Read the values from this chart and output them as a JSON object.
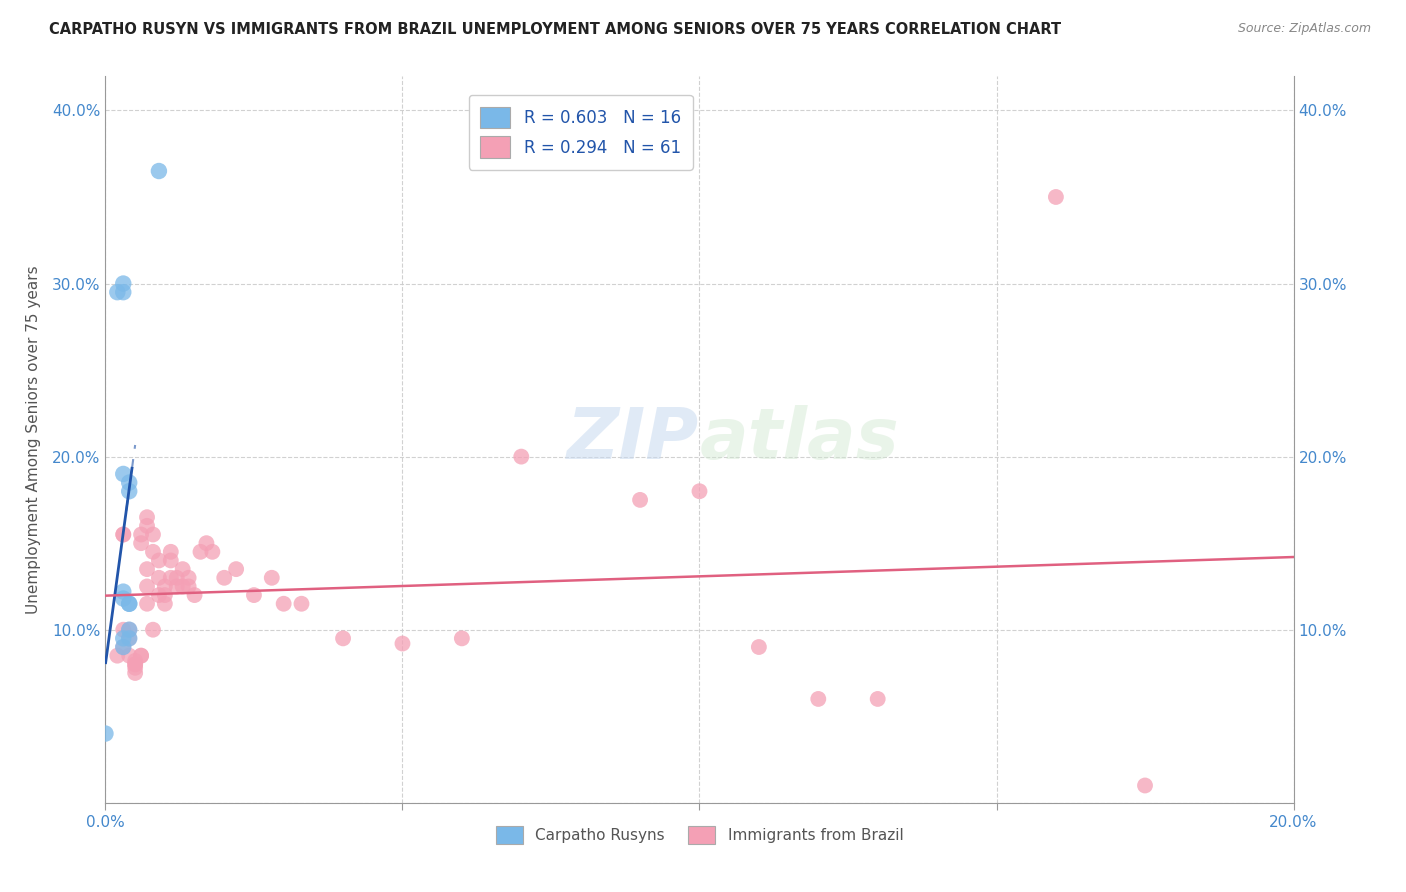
{
  "title": "CARPATHO RUSYN VS IMMIGRANTS FROM BRAZIL UNEMPLOYMENT AMONG SENIORS OVER 75 YEARS CORRELATION CHART",
  "source": "Source: ZipAtlas.com",
  "ylabel": "Unemployment Among Seniors over 75 years",
  "xlim": [
    0,
    0.2
  ],
  "ylim": [
    0,
    0.42
  ],
  "blue_color": "#7ab8e8",
  "pink_color": "#f4a0b5",
  "blue_line_color": "#2255aa",
  "pink_line_color": "#e06080",
  "tick_color": "#4488cc",
  "watermark_color": "#ddeeff",
  "blue_scatter_x": [
    0.002,
    0.003,
    0.003,
    0.003,
    0.003,
    0.003,
    0.003,
    0.003,
    0.004,
    0.004,
    0.004,
    0.004,
    0.004,
    0.004,
    0.009,
    0.0
  ],
  "blue_scatter_y": [
    0.295,
    0.3,
    0.295,
    0.19,
    0.122,
    0.118,
    0.095,
    0.09,
    0.115,
    0.115,
    0.1,
    0.095,
    0.185,
    0.18,
    0.365,
    0.04
  ],
  "pink_scatter_x": [
    0.002,
    0.003,
    0.003,
    0.003,
    0.003,
    0.004,
    0.004,
    0.004,
    0.005,
    0.005,
    0.005,
    0.005,
    0.005,
    0.006,
    0.006,
    0.006,
    0.006,
    0.007,
    0.007,
    0.007,
    0.007,
    0.007,
    0.008,
    0.008,
    0.008,
    0.009,
    0.009,
    0.009,
    0.01,
    0.01,
    0.01,
    0.011,
    0.011,
    0.011,
    0.012,
    0.012,
    0.013,
    0.013,
    0.014,
    0.014,
    0.015,
    0.016,
    0.017,
    0.018,
    0.02,
    0.022,
    0.025,
    0.028,
    0.03,
    0.033,
    0.04,
    0.05,
    0.06,
    0.07,
    0.09,
    0.1,
    0.11,
    0.12,
    0.13,
    0.16,
    0.175
  ],
  "pink_scatter_y": [
    0.085,
    0.09,
    0.155,
    0.155,
    0.1,
    0.1,
    0.095,
    0.085,
    0.08,
    0.08,
    0.082,
    0.078,
    0.075,
    0.085,
    0.085,
    0.155,
    0.15,
    0.135,
    0.125,
    0.115,
    0.165,
    0.16,
    0.155,
    0.145,
    0.1,
    0.14,
    0.13,
    0.12,
    0.125,
    0.12,
    0.115,
    0.145,
    0.14,
    0.13,
    0.13,
    0.125,
    0.135,
    0.125,
    0.13,
    0.125,
    0.12,
    0.145,
    0.15,
    0.145,
    0.13,
    0.135,
    0.12,
    0.13,
    0.115,
    0.115,
    0.095,
    0.092,
    0.095,
    0.2,
    0.175,
    0.18,
    0.09,
    0.06,
    0.06,
    0.35,
    0.01
  ]
}
